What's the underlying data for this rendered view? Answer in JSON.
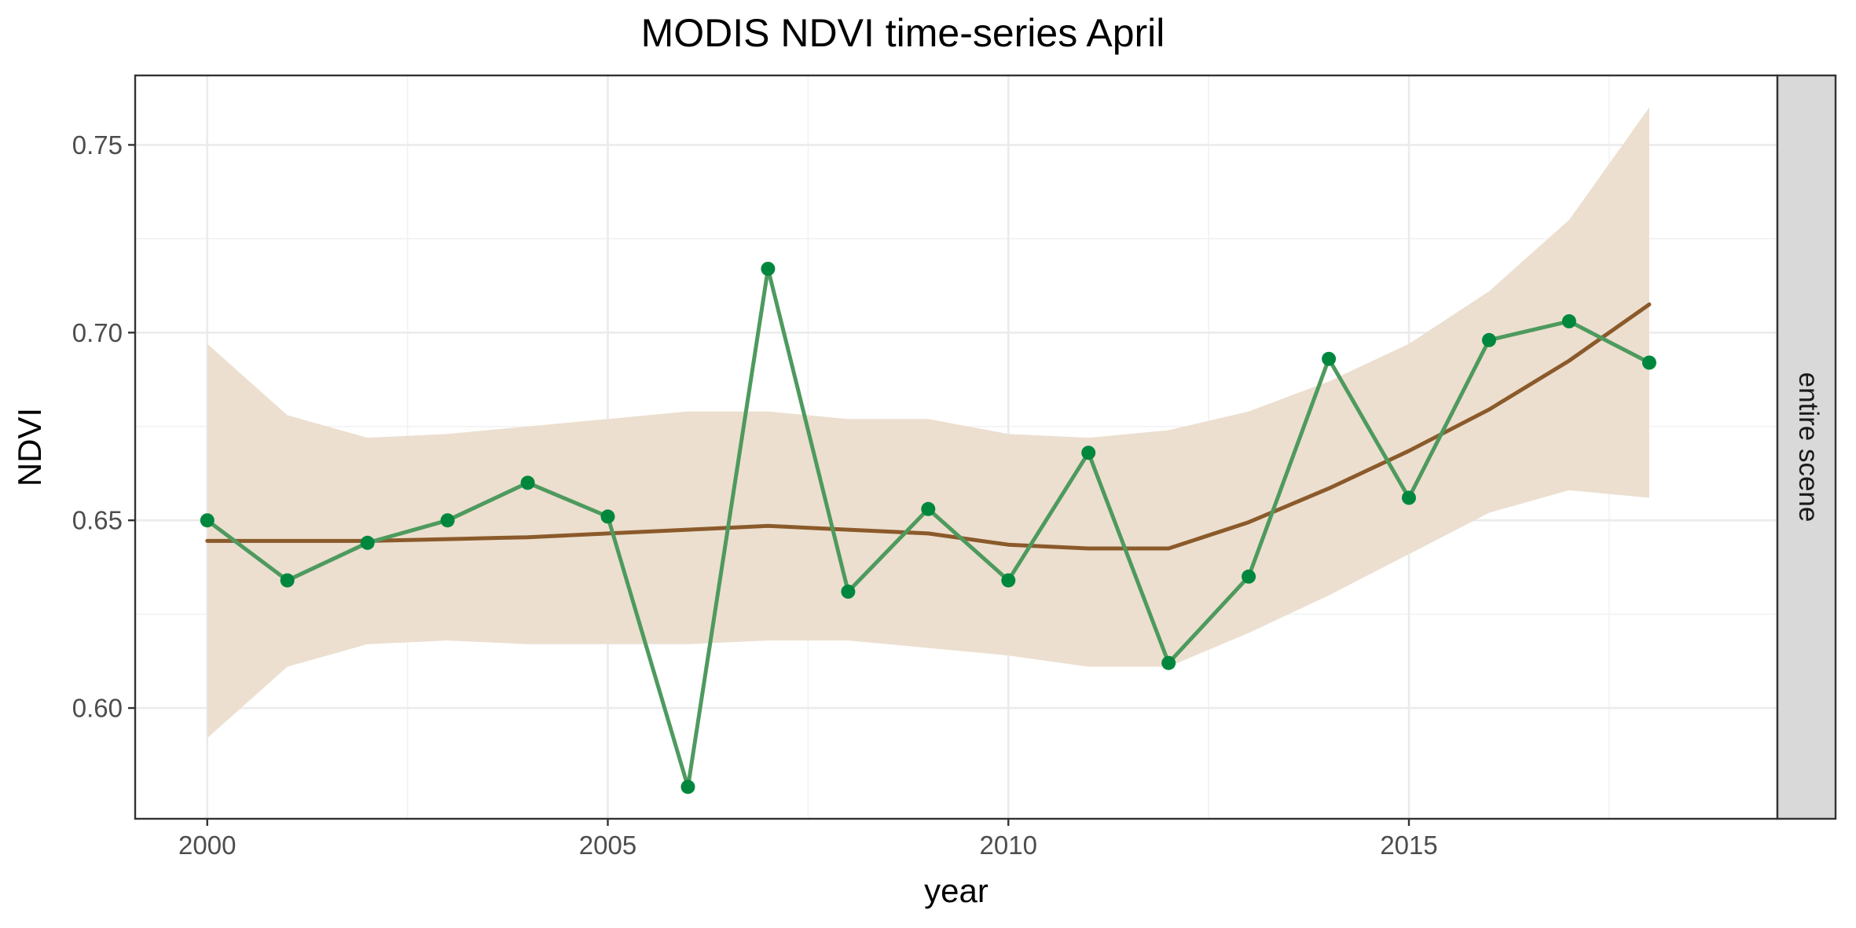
{
  "chart_data": {
    "type": "line",
    "title": "MODIS NDVI time-series April",
    "xlabel": "year",
    "ylabel": "NDVI",
    "facet_label": "entire scene",
    "xlim": [
      1999.1,
      2019.6
    ],
    "ylim": [
      0.5705,
      0.7685
    ],
    "x_ticks": [
      2000,
      2005,
      2010,
      2015
    ],
    "x_tick_labels": [
      "2000",
      "2005",
      "2010",
      "2015"
    ],
    "x_minor_ticks": [
      2002.5,
      2007.5,
      2012.5,
      2017.5
    ],
    "y_ticks": [
      0.6,
      0.65,
      0.7,
      0.75
    ],
    "y_tick_labels": [
      "0.60",
      "0.65",
      "0.70",
      "0.75"
    ],
    "y_minor_ticks": [
      0.625,
      0.675,
      0.725
    ],
    "grid": true,
    "series": [
      {
        "x": [
          2000,
          2001,
          2002,
          2003,
          2004,
          2005,
          2006,
          2007,
          2008,
          2009,
          2010,
          2011,
          2012,
          2013,
          2014,
          2015,
          2016,
          2017,
          2018
        ],
        "values": [
          0.65,
          0.634,
          0.644,
          0.65,
          0.66,
          0.651,
          0.579,
          0.717,
          0.631,
          0.653,
          0.634,
          0.668,
          0.612,
          0.635,
          0.693,
          0.656,
          0.698,
          0.703,
          0.692
        ],
        "color": "#4e9a5e",
        "point_color": "#00873e"
      }
    ],
    "smooth": {
      "x": [
        2000,
        2001,
        2002,
        2003,
        2004,
        2005,
        2006,
        2007,
        2008,
        2009,
        2010,
        2011,
        2012,
        2013,
        2014,
        2015,
        2016,
        2017,
        2018
      ],
      "values": [
        0.6445,
        0.6445,
        0.6445,
        0.645,
        0.6455,
        0.6465,
        0.6475,
        0.6485,
        0.6475,
        0.6465,
        0.6435,
        0.6425,
        0.6425,
        0.6495,
        0.6585,
        0.6685,
        0.6795,
        0.6925,
        0.7075
      ],
      "ci_upper": [
        0.697,
        0.678,
        0.672,
        0.673,
        0.675,
        0.677,
        0.679,
        0.679,
        0.677,
        0.677,
        0.673,
        0.672,
        0.674,
        0.679,
        0.687,
        0.697,
        0.711,
        0.73,
        0.76
      ],
      "ci_lower": [
        0.592,
        0.611,
        0.617,
        0.618,
        0.617,
        0.617,
        0.617,
        0.618,
        0.618,
        0.616,
        0.614,
        0.611,
        0.611,
        0.62,
        0.63,
        0.641,
        0.652,
        0.658,
        0.656
      ],
      "color": "#8b5a2b",
      "ribbon_color": "#ecdfcf"
    },
    "legend": "none"
  }
}
